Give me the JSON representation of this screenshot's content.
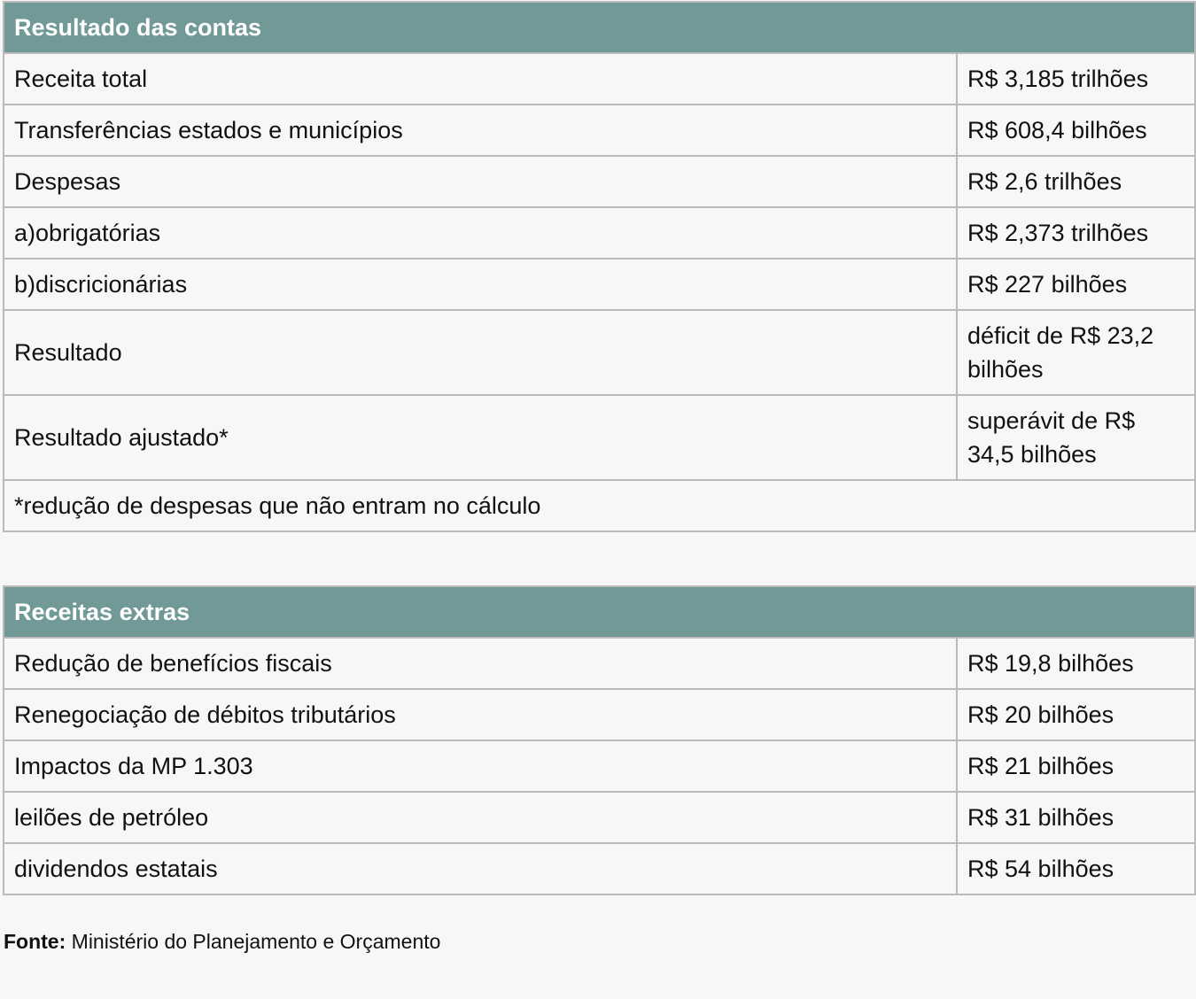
{
  "table1": {
    "title": "Resultado das contas",
    "rows": [
      {
        "label": "Receita total",
        "value": "R$ 3,185 trilhões"
      },
      {
        "label": "Transferências estados e municípios",
        "value": "R$ 608,4 bilhões"
      },
      {
        "label": "Despesas",
        "value": "R$ 2,6 trilhões"
      },
      {
        "label": "a)obrigatórias",
        "value": "R$ 2,373 trilhões"
      },
      {
        "label": "b)discricionárias",
        "value": "R$ 227 bilhões"
      },
      {
        "label": "Resultado",
        "value": "déficit de R$ 23,2 bilhões"
      },
      {
        "label": "Resultado ajustado*",
        "value": "superávit de R$ 34,5 bilhões"
      }
    ],
    "footnote": "*redução de despesas que não entram no cálculo"
  },
  "table2": {
    "title": "Receitas extras",
    "rows": [
      {
        "label": "Redução de benefícios fiscais",
        "value": "R$ 19,8 bilhões"
      },
      {
        "label": "Renegociação de débitos tributários",
        "value": "R$ 20 bilhões"
      },
      {
        "label": "Impactos da MP 1.303",
        "value": "R$ 21 bilhões"
      },
      {
        "label": "leilões de petróleo",
        "value": "R$ 31 bilhões"
      },
      {
        "label": "dividendos estatais",
        "value": "R$ 54 bilhões"
      }
    ]
  },
  "source": {
    "label": "Fonte:",
    "text": "Ministério do Planejamento e Orçamento"
  },
  "colors": {
    "header": "#719998",
    "border": "#bbbbbb",
    "background": "#f7f7f7"
  }
}
